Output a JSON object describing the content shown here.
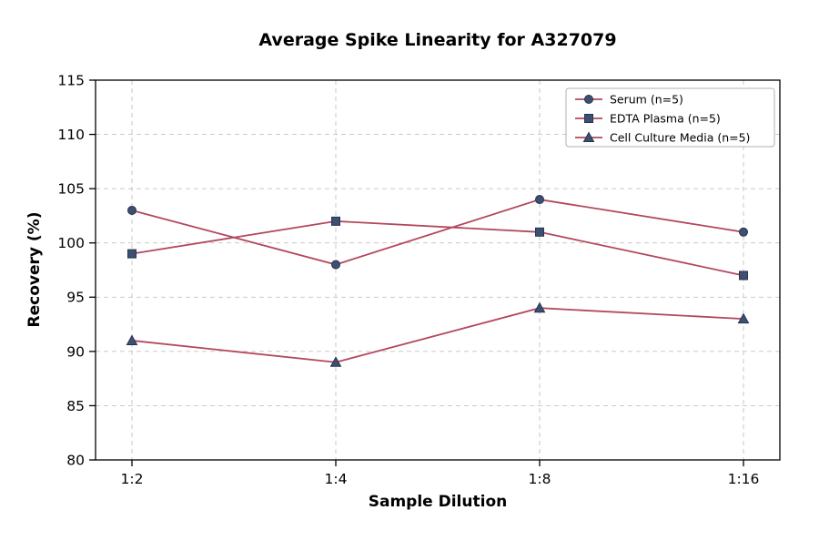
{
  "chart_data": {
    "type": "line",
    "title": "Average Spike Linearity for A327079",
    "xlabel": "Sample Dilution",
    "ylabel": "Recovery (%)",
    "categories": [
      "1:2",
      "1:4",
      "1:8",
      "1:16"
    ],
    "series": [
      {
        "name": "Serum (n=5)",
        "marker": "circle",
        "values": [
          103,
          98,
          104,
          101
        ]
      },
      {
        "name": "EDTA Plasma (n=5)",
        "marker": "square",
        "values": [
          99,
          102,
          101,
          97
        ]
      },
      {
        "name": "Cell Culture Media (n=5)",
        "marker": "triangle",
        "values": [
          91,
          89,
          94,
          93
        ]
      }
    ],
    "ylim": [
      80,
      115
    ],
    "yticks": [
      80,
      85,
      90,
      95,
      100,
      105,
      110,
      115
    ],
    "grid": true,
    "grid_style": "dashed",
    "legend_position": "top-right",
    "colors": {
      "line": "#b3485e",
      "marker_fill": "#3e5071",
      "marker_edge": "#26334f",
      "grid": "#c2c2c2",
      "axis": "#000000",
      "text": "#000000",
      "legend_border": "#b0b0b0",
      "background": "#ffffff"
    }
  }
}
